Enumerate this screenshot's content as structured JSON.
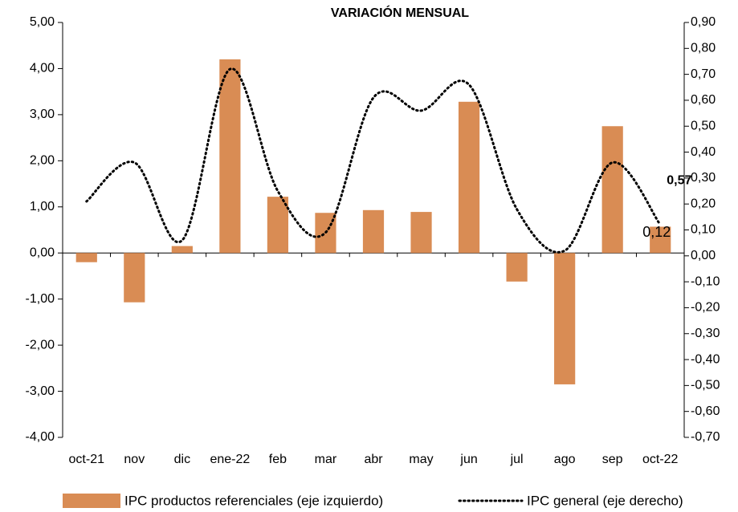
{
  "chart_data": {
    "type": "bar",
    "title": "VARIACIÓN MENSUAL",
    "categories": [
      "oct-21",
      "nov",
      "dic",
      "ene-22",
      "feb",
      "mar",
      "abr",
      "may",
      "jun",
      "jul",
      "ago",
      "sep",
      "oct-22"
    ],
    "series": [
      {
        "name": "IPC productos referenciales (eje izquierdo)",
        "type": "bar",
        "color": "#d98c54",
        "values": [
          -0.2,
          -1.07,
          0.15,
          4.2,
          1.22,
          0.87,
          0.93,
          0.89,
          3.28,
          -0.62,
          -2.85,
          2.75,
          0.57
        ],
        "value_labels": [
          null,
          null,
          null,
          null,
          null,
          null,
          null,
          null,
          null,
          null,
          null,
          null,
          "0,57"
        ]
      },
      {
        "name": "IPC general (eje derecho)",
        "type": "line",
        "color": "#000000",
        "axis": "y2",
        "values": [
          0.21,
          0.36,
          0.06,
          0.72,
          0.25,
          0.09,
          0.61,
          0.56,
          0.66,
          0.18,
          0.02,
          0.36,
          0.12
        ],
        "value_labels": [
          null,
          null,
          null,
          null,
          null,
          null,
          null,
          null,
          null,
          null,
          null,
          null,
          "0,12"
        ]
      }
    ],
    "ylim": [
      -4,
      5
    ],
    "yticks": [
      {
        "value": -4,
        "label": "-4,00"
      },
      {
        "value": -3,
        "label": "-3,00"
      },
      {
        "value": -2,
        "label": "-2,00"
      },
      {
        "value": -1,
        "label": "-1,00"
      },
      {
        "value": 0,
        "label": "0,00"
      },
      {
        "value": 1,
        "label": "1,00"
      },
      {
        "value": 2,
        "label": "2,00"
      },
      {
        "value": 3,
        "label": "3,00"
      },
      {
        "value": 4,
        "label": "4,00"
      },
      {
        "value": 5,
        "label": "5,00"
      }
    ],
    "y2lim": [
      -0.7,
      0.9
    ],
    "y2ticks": [
      {
        "value": -0.7,
        "label": "-0,70"
      },
      {
        "value": -0.6,
        "label": "-0,60"
      },
      {
        "value": -0.5,
        "label": "-0,50"
      },
      {
        "value": -0.4,
        "label": "-0,40"
      },
      {
        "value": -0.3,
        "label": "-0,30"
      },
      {
        "value": -0.2,
        "label": "-0,20"
      },
      {
        "value": -0.1,
        "label": "-0,10"
      },
      {
        "value": 0,
        "label": "0,00"
      },
      {
        "value": 0.1,
        "label": "0,10"
      },
      {
        "value": 0.2,
        "label": "0,20"
      },
      {
        "value": 0.3,
        "label": "0,30"
      },
      {
        "value": 0.4,
        "label": "0,40"
      },
      {
        "value": 0.5,
        "label": "0,50"
      },
      {
        "value": 0.6,
        "label": "0,60"
      },
      {
        "value": 0.7,
        "label": "0,70"
      },
      {
        "value": 0.8,
        "label": "0,80"
      },
      {
        "value": 0.9,
        "label": "0,90"
      }
    ],
    "legend": "bottom",
    "grid": false
  }
}
